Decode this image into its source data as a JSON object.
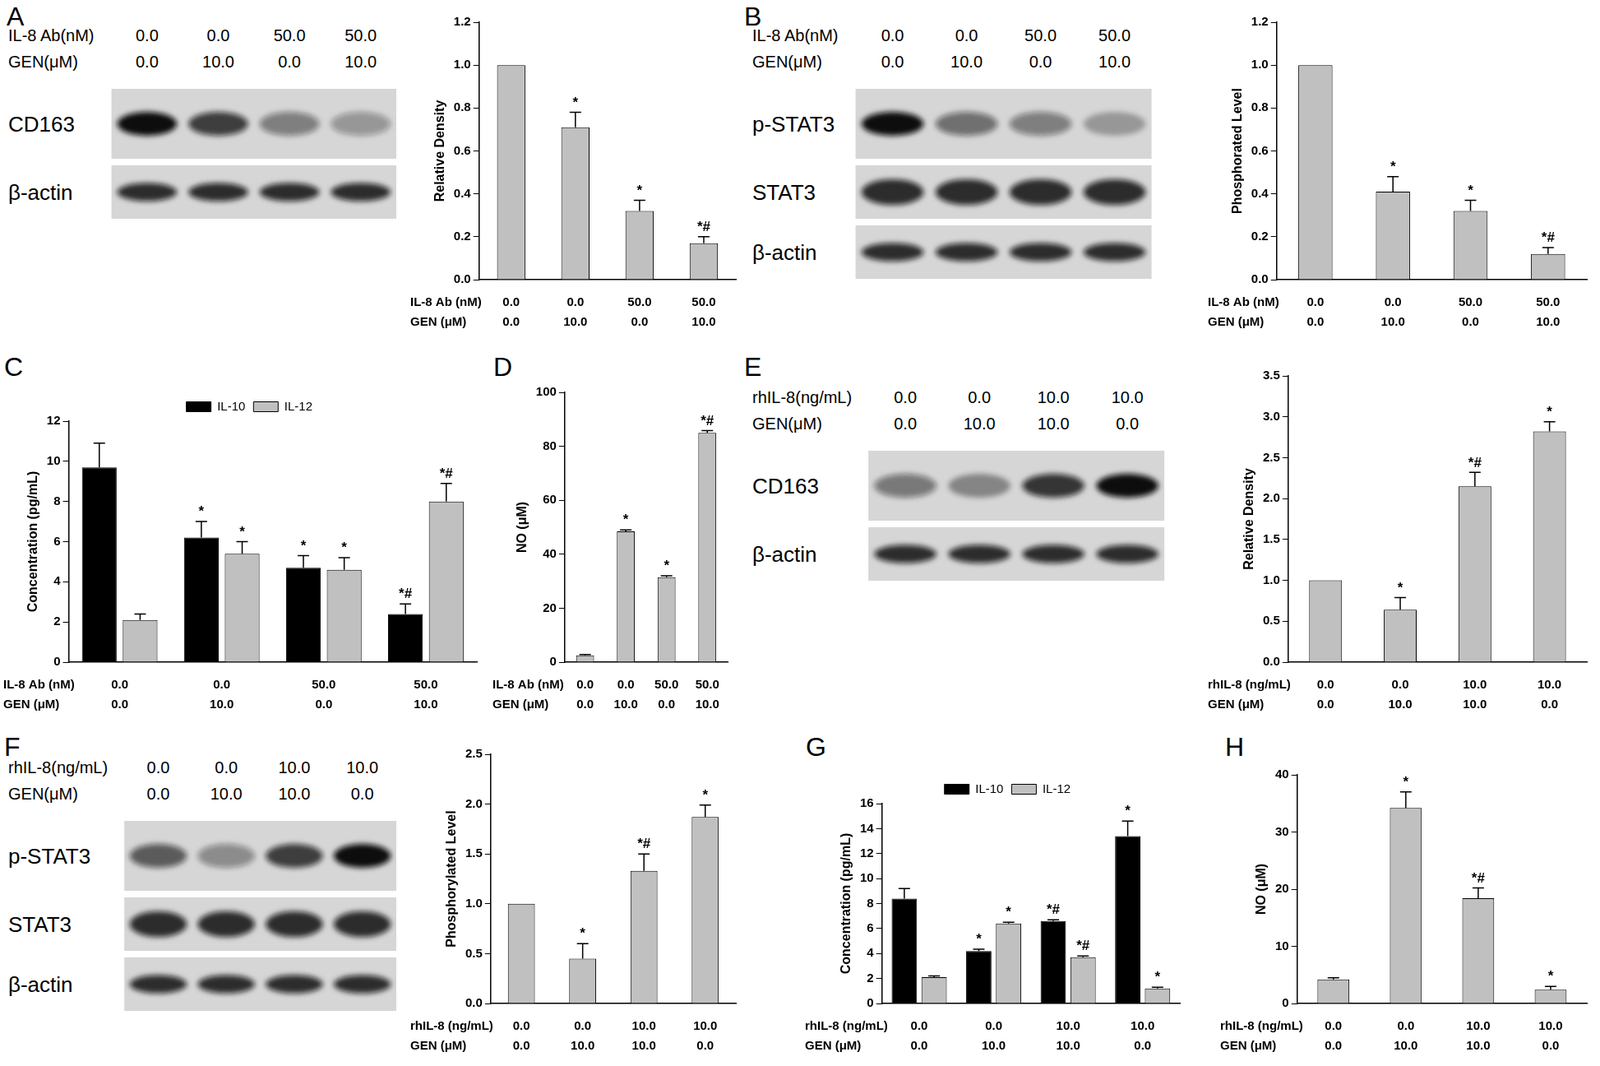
{
  "chart_data": [
    {
      "panel": "A",
      "type": "bar",
      "y_label": "Relative Density",
      "x_row_labels": [
        "IL-8 Ab (nM)",
        "GEN (μM)"
      ],
      "categories": [
        [
          "0.0",
          "0.0"
        ],
        [
          "0.0",
          "10.0"
        ],
        [
          "50.0",
          "0.0"
        ],
        [
          "50.0",
          "10.0"
        ]
      ],
      "values": [
        1.0,
        0.71,
        0.32,
        0.17
      ],
      "errors": [
        null,
        0.07,
        0.05,
        0.03
      ],
      "significance": [
        null,
        "*",
        "*",
        "*#"
      ],
      "color": "#c0c0c0",
      "ylim": [
        0,
        1.2
      ],
      "yticks": [
        {
          "value": 0,
          "label": "0.0"
        },
        0.2,
        0.4,
        0.6,
        0.8,
        {
          "value": 1,
          "label": "1.0"
        },
        1.2
      ],
      "grid": false,
      "blot": {
        "header_rows": [
          {
            "label": "IL-8 Ab(nM)",
            "values": [
              "0.0",
              "0.0",
              "50.0",
              "50.0"
            ]
          },
          {
            "label": "GEN(μM)",
            "values": [
              "0.0",
              "10.0",
              "0.0",
              "10.0"
            ]
          }
        ],
        "rows": [
          "CD163",
          "β-actin"
        ]
      }
    },
    {
      "panel": "B",
      "type": "bar",
      "y_label": "Phosphorated Level",
      "x_row_labels": [
        "IL-8 Ab (nM)",
        "GEN (μM)"
      ],
      "categories": [
        [
          "0.0",
          "0.0"
        ],
        [
          "0.0",
          "10.0"
        ],
        [
          "50.0",
          "0.0"
        ],
        [
          "50.0",
          "10.0"
        ]
      ],
      "values": [
        1.0,
        0.41,
        0.32,
        0.12
      ],
      "errors": [
        null,
        0.07,
        0.05,
        0.03
      ],
      "significance": [
        null,
        "*",
        "*",
        "*#"
      ],
      "color": "#c0c0c0",
      "ylim": [
        0,
        1.2
      ],
      "yticks": [
        {
          "value": 0,
          "label": "0.0"
        },
        0.2,
        0.4,
        0.6,
        0.8,
        {
          "value": 1,
          "label": "1.0"
        },
        1.2
      ],
      "grid": false,
      "blot": {
        "header_rows": [
          {
            "label": "IL-8 Ab(nM)",
            "values": [
              "0.0",
              "0.0",
              "50.0",
              "50.0"
            ]
          },
          {
            "label": "GEN(μM)",
            "values": [
              "0.0",
              "10.0",
              "0.0",
              "10.0"
            ]
          }
        ],
        "rows": [
          "p-STAT3",
          "STAT3",
          "β-actin"
        ]
      }
    },
    {
      "panel": "C",
      "type": "bar",
      "y_label": "Concentration (pg/mL)",
      "x_row_labels": [
        "IL-8 Ab (nM)",
        "GEN (μM)"
      ],
      "categories": [
        [
          "0.0",
          "0.0"
        ],
        [
          "0.0",
          "10.0"
        ],
        [
          "50.0",
          "0.0"
        ],
        [
          "50.0",
          "10.0"
        ]
      ],
      "series": [
        {
          "name": "IL-10",
          "color": "#000000",
          "values": [
            9.7,
            6.2,
            4.7,
            2.4
          ],
          "errors": [
            1.2,
            0.8,
            0.6,
            0.5
          ],
          "significance": [
            null,
            "*",
            "*",
            "*#"
          ]
        },
        {
          "name": "IL-12",
          "color": "#c0c0c0",
          "values": [
            2.1,
            5.4,
            4.6,
            8.0
          ],
          "errors": [
            0.3,
            0.6,
            0.6,
            0.9
          ],
          "significance": [
            null,
            "*",
            "*",
            "*#"
          ]
        }
      ],
      "legend": "top",
      "ylim": [
        0,
        12
      ],
      "yticks": [
        0,
        2,
        4,
        6,
        8,
        10,
        12
      ],
      "grid": false
    },
    {
      "panel": "D",
      "type": "bar",
      "y_label": "NO (μM)",
      "x_row_labels": [
        "IL-8 Ab (nM)",
        "GEN (μM)"
      ],
      "categories": [
        [
          "0.0",
          "0.0"
        ],
        [
          "0.0",
          "10.0"
        ],
        [
          "50.0",
          "0.0"
        ],
        [
          "50.0",
          "10.0"
        ]
      ],
      "values": [
        2.5,
        48.5,
        31.5,
        85
      ],
      "errors": [
        0.3,
        0.5,
        0.5,
        0.8
      ],
      "significance": [
        null,
        "*",
        "*",
        "*#"
      ],
      "color": "#c0c0c0",
      "ylim": [
        0,
        100
      ],
      "yticks": [
        0,
        20,
        40,
        60,
        80,
        100
      ],
      "grid": false
    },
    {
      "panel": "E",
      "type": "bar",
      "y_label": "Relative Density",
      "x_row_labels": [
        "rhIL-8 (ng/mL)",
        "GEN (μM)"
      ],
      "categories": [
        [
          "0.0",
          "0.0"
        ],
        [
          "0.0",
          "10.0"
        ],
        [
          "10.0",
          "10.0"
        ],
        [
          "10.0",
          "0.0"
        ]
      ],
      "values": [
        1.0,
        0.64,
        2.15,
        2.82
      ],
      "errors": [
        null,
        0.15,
        0.17,
        0.12
      ],
      "significance": [
        null,
        "*",
        "*#",
        "*"
      ],
      "color": "#c0c0c0",
      "ylim": [
        0,
        3.5
      ],
      "yticks": [
        {
          "value": 0,
          "label": "0.0"
        },
        0.5,
        {
          "value": 1,
          "label": "1.0"
        },
        1.5,
        {
          "value": 2,
          "label": "2.0"
        },
        2.5,
        {
          "value": 3,
          "label": "3.0"
        },
        3.5
      ],
      "grid": false,
      "blot": {
        "header_rows": [
          {
            "label": "rhIL-8(ng/mL)",
            "values": [
              "0.0",
              "0.0",
              "10.0",
              "10.0"
            ]
          },
          {
            "label": "GEN(μM)",
            "values": [
              "0.0",
              "10.0",
              "10.0",
              "0.0"
            ]
          }
        ],
        "rows": [
          "CD163",
          "β-actin"
        ]
      }
    },
    {
      "panel": "F",
      "type": "bar",
      "y_label": "Phosphorylated Level",
      "x_row_labels": [
        "rhIL-8 (ng/mL)",
        "GEN (μM)"
      ],
      "categories": [
        [
          "0.0",
          "0.0"
        ],
        [
          "0.0",
          "10.0"
        ],
        [
          "10.0",
          "10.0"
        ],
        [
          "10.0",
          "0.0"
        ]
      ],
      "values": [
        1.0,
        0.45,
        1.33,
        1.87
      ],
      "errors": [
        null,
        0.15,
        0.17,
        0.12
      ],
      "significance": [
        null,
        "*",
        "*#",
        "*"
      ],
      "color": "#c0c0c0",
      "ylim": [
        0,
        2.5
      ],
      "yticks": [
        {
          "value": 0,
          "label": "0.0"
        },
        0.5,
        {
          "value": 1,
          "label": "1.0"
        },
        1.5,
        {
          "value": 2,
          "label": "2.0"
        },
        2.5
      ],
      "grid": false,
      "blot": {
        "header_rows": [
          {
            "label": "rhIL-8(ng/mL)",
            "values": [
              "0.0",
              "0.0",
              "10.0",
              "10.0"
            ]
          },
          {
            "label": "GEN(μM)",
            "values": [
              "0.0",
              "10.0",
              "10.0",
              "0.0"
            ]
          }
        ],
        "rows": [
          "p-STAT3",
          "STAT3",
          "β-actin"
        ]
      }
    },
    {
      "panel": "G",
      "type": "bar",
      "y_label": "Concentration (pg/mL)",
      "x_row_labels": [
        "rhIL-8 (ng/mL)",
        "GEN (μM)"
      ],
      "categories": [
        [
          "0.0",
          "0.0"
        ],
        [
          "0.0",
          "10.0"
        ],
        [
          "10.0",
          "10.0"
        ],
        [
          "10.0",
          "0.0"
        ]
      ],
      "series": [
        {
          "name": "IL-10",
          "color": "#000000",
          "values": [
            8.4,
            4.2,
            6.6,
            13.4
          ],
          "errors": [
            0.8,
            0.15,
            0.1,
            1.2
          ],
          "significance": [
            null,
            "*",
            "*#",
            "*"
          ]
        },
        {
          "name": "IL-12",
          "color": "#c0c0c0",
          "values": [
            2.1,
            6.4,
            3.7,
            1.2
          ],
          "errors": [
            0.1,
            0.1,
            0.1,
            0.1
          ],
          "significance": [
            null,
            "*",
            "*#",
            "*"
          ]
        }
      ],
      "legend": "top",
      "ylim": [
        0,
        16
      ],
      "yticks": [
        0,
        2,
        4,
        6,
        8,
        10,
        12,
        14,
        16
      ],
      "grid": false
    },
    {
      "panel": "H",
      "type": "bar",
      "y_label": "NO (μM)",
      "x_row_labels": [
        "rhIL-8 (ng/mL)",
        "GEN (μM)"
      ],
      "categories": [
        [
          "0.0",
          "0.0"
        ],
        [
          "0.0",
          "10.0"
        ],
        [
          "10.0",
          "10.0"
        ],
        [
          "10.0",
          "0.0"
        ]
      ],
      "values": [
        4.2,
        34.2,
        18.4,
        2.4
      ],
      "errors": [
        0.3,
        2.8,
        1.8,
        0.6
      ],
      "significance": [
        null,
        "*",
        "*#",
        "*"
      ],
      "color": "#c0c0c0",
      "ylim": [
        0,
        40
      ],
      "yticks": [
        0,
        10,
        20,
        30,
        40
      ],
      "grid": false
    }
  ]
}
